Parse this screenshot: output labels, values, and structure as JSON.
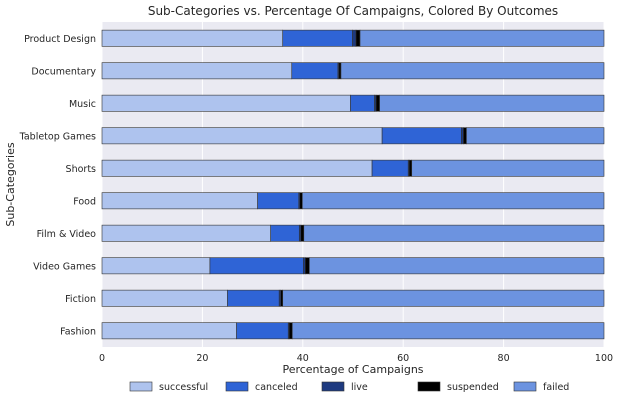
{
  "chart_data": {
    "type": "bar",
    "orientation": "horizontal",
    "stacked": true,
    "title": "Sub-Categories vs. Percentage Of Campaigns, Colored By Outcomes",
    "xlabel": "Percentage of Campaigns",
    "ylabel": "Sub-Categories",
    "xlim": [
      0,
      100
    ],
    "xticks": [
      0,
      20,
      40,
      60,
      80,
      100
    ],
    "grid": true,
    "legend_position": "bottom",
    "categories": [
      "Product Design",
      "Documentary",
      "Music",
      "Tabletop Games",
      "Shorts",
      "Food",
      "Film & Video",
      "Video Games",
      "Fiction",
      "Fashion"
    ],
    "series": [
      {
        "name": "successful",
        "color": "#aec3ee",
        "values": [
          36.0,
          37.8,
          49.5,
          55.8,
          53.8,
          31.0,
          33.6,
          21.5,
          25.0,
          26.8
        ]
      },
      {
        "name": "canceled",
        "color": "#2f64d6",
        "values": [
          13.9,
          9.2,
          4.8,
          15.8,
          7.2,
          8.2,
          5.7,
          18.6,
          10.3,
          10.3
        ]
      },
      {
        "name": "live",
        "color": "#1e3a80",
        "values": [
          0.7,
          0.2,
          0.3,
          0.4,
          0.2,
          0.2,
          0.3,
          0.4,
          0.3,
          0.2
        ]
      },
      {
        "name": "suspended",
        "color": "#000000",
        "values": [
          0.8,
          0.4,
          0.7,
          0.6,
          0.5,
          0.5,
          0.6,
          0.8,
          0.4,
          0.6
        ]
      },
      {
        "name": "failed",
        "color": "#6c93e0",
        "values": [
          48.6,
          52.4,
          44.7,
          27.4,
          38.3,
          60.1,
          59.8,
          58.7,
          64.0,
          62.1
        ]
      }
    ]
  },
  "colors": {
    "plot_background": "#eaeaf2",
    "grid": "#ffffff",
    "bar_edge": "#333333"
  }
}
